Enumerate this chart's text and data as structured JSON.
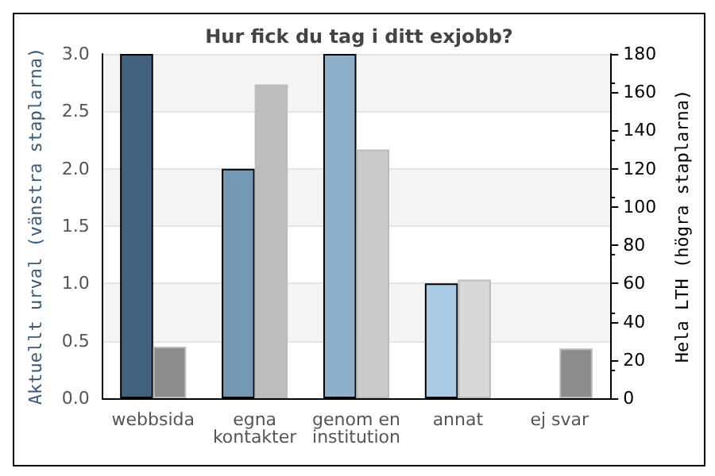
{
  "chart_data": {
    "type": "bar",
    "title": "Hur fick du tag i ditt exjobb?",
    "ylabel": "Aktuellt urval (vänstra staplarna)",
    "y2label": "Hela LTH (högra staplarna)",
    "categories": [
      "webbsida",
      "egna\nkontakter",
      "genom en\ninstitution",
      "annat",
      "ej svar"
    ],
    "series": [
      {
        "colors": [
          "#41617f",
          "#7497b4",
          "#8fb0cb",
          "#aacbe6",
          "#aacbe6"
        ],
        "values": [
          3,
          2,
          3,
          1,
          0
        ]
      },
      {
        "axis": "y2",
        "colors": [
          "#8c8c8c",
          "#bdbdbd",
          "#cacaca",
          "#d8d8d8",
          "#8c8c8c"
        ],
        "values": [
          27,
          164,
          130,
          62,
          26
        ]
      }
    ],
    "ylim": [
      0,
      3
    ],
    "yticks": [
      {
        "value": 0,
        "label": "0.0"
      },
      {
        "value": 0.5,
        "label": "0.5"
      },
      {
        "value": 1,
        "label": "1.0"
      },
      {
        "value": 1.5,
        "label": "1.5"
      },
      {
        "value": 2,
        "label": "2.0"
      },
      {
        "value": 2.5,
        "label": "2.5"
      },
      {
        "value": 3,
        "label": "3.0"
      }
    ],
    "y2lim": [
      0,
      180
    ],
    "y2ticks": [
      0,
      20,
      40,
      60,
      80,
      100,
      120,
      140,
      160,
      180
    ],
    "grid": "y"
  }
}
